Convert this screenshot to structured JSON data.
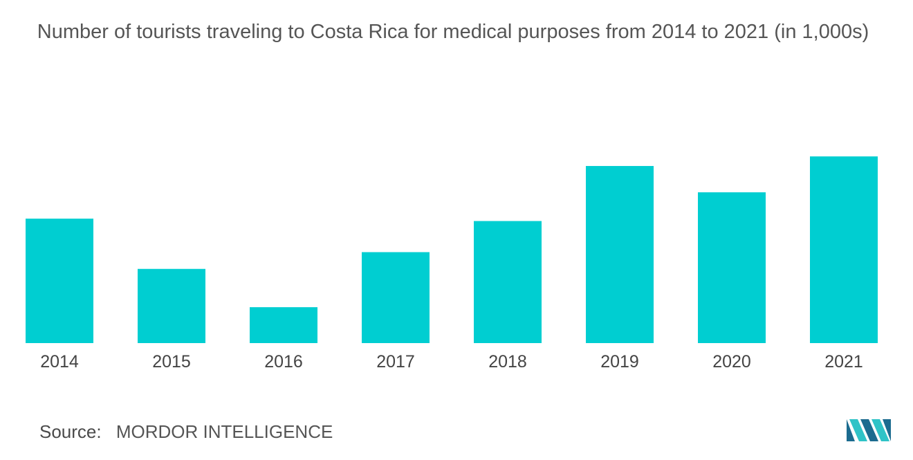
{
  "chart_data": {
    "type": "bar",
    "title": "Number of tourists traveling to Costa Rica for medical purposes from 2014 to 2021 (in 1,000s)",
    "categories": [
      "2014",
      "2015",
      "2016",
      "2017",
      "2018",
      "2019",
      "2020",
      "2021"
    ],
    "values": [
      52,
      31,
      15,
      38,
      51,
      74,
      63,
      78
    ],
    "ylim": [
      0,
      100
    ],
    "grid": false,
    "legend": "none",
    "bar_color": "#00CED1"
  },
  "source": {
    "label": "Source:",
    "value": "MORDOR INTELLIGENCE"
  },
  "logo": {
    "icon": "mordor-intelligence-logo-icon",
    "colors": [
      "#1b6b8f",
      "#2fc3c7"
    ]
  }
}
